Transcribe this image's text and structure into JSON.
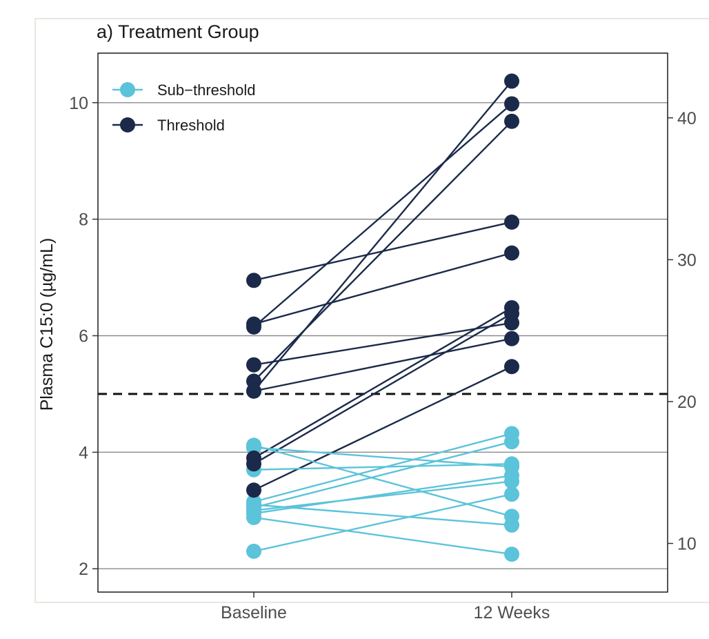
{
  "chart_data": {
    "type": "line",
    "title": "a) Treatment Group",
    "ylabel": "Plasma C15:0 (µg/mL)",
    "categories": [
      "Baseline",
      "12 Weeks"
    ],
    "ylim": [
      1.6,
      10.85
    ],
    "y_ticks": [
      2,
      4,
      6,
      8,
      10
    ],
    "y_tick_labels": [
      "2",
      "4",
      "6",
      "8",
      "10"
    ],
    "y2_ticks": [
      10,
      20,
      30,
      40
    ],
    "y2_tick_labels": [
      "10",
      "20",
      "30",
      "40"
    ],
    "y2_per_y1": 4.107,
    "threshold": 5.0,
    "grid": true,
    "legend_position": "top-left",
    "colors": {
      "Sub-threshold": "#5bc3da",
      "Threshold": "#1b2a4a"
    },
    "legend": [
      {
        "name": "Sub−threshold",
        "group": "Sub-threshold"
      },
      {
        "name": "Threshold",
        "group": "Threshold"
      }
    ],
    "series": [
      {
        "group": "Threshold",
        "values": [
          6.95,
          7.95
        ]
      },
      {
        "group": "Threshold",
        "values": [
          6.2,
          7.42
        ]
      },
      {
        "group": "Threshold",
        "values": [
          6.15,
          9.98
        ]
      },
      {
        "group": "Threshold",
        "values": [
          5.5,
          6.22
        ]
      },
      {
        "group": "Threshold",
        "values": [
          5.22,
          9.68
        ]
      },
      {
        "group": "Threshold",
        "values": [
          5.05,
          10.37
        ]
      },
      {
        "group": "Threshold",
        "values": [
          5.05,
          5.95
        ]
      },
      {
        "group": "Threshold",
        "values": [
          3.9,
          6.48
        ]
      },
      {
        "group": "Threshold",
        "values": [
          3.8,
          6.38
        ]
      },
      {
        "group": "Threshold",
        "values": [
          3.35,
          5.47
        ]
      },
      {
        "group": "Sub-threshold",
        "values": [
          4.12,
          2.9
        ]
      },
      {
        "group": "Sub-threshold",
        "values": [
          4.08,
          3.75
        ]
      },
      {
        "group": "Sub-threshold",
        "values": [
          3.7,
          3.8
        ]
      },
      {
        "group": "Sub-threshold",
        "values": [
          3.15,
          4.32
        ]
      },
      {
        "group": "Sub-threshold",
        "values": [
          3.1,
          2.75
        ]
      },
      {
        "group": "Sub-threshold",
        "values": [
          3.05,
          4.18
        ]
      },
      {
        "group": "Sub-threshold",
        "values": [
          3.0,
          3.5
        ]
      },
      {
        "group": "Sub-threshold",
        "values": [
          2.95,
          3.6
        ]
      },
      {
        "group": "Sub-threshold",
        "values": [
          2.88,
          2.25
        ]
      },
      {
        "group": "Sub-threshold",
        "values": [
          2.3,
          3.28
        ]
      }
    ]
  }
}
